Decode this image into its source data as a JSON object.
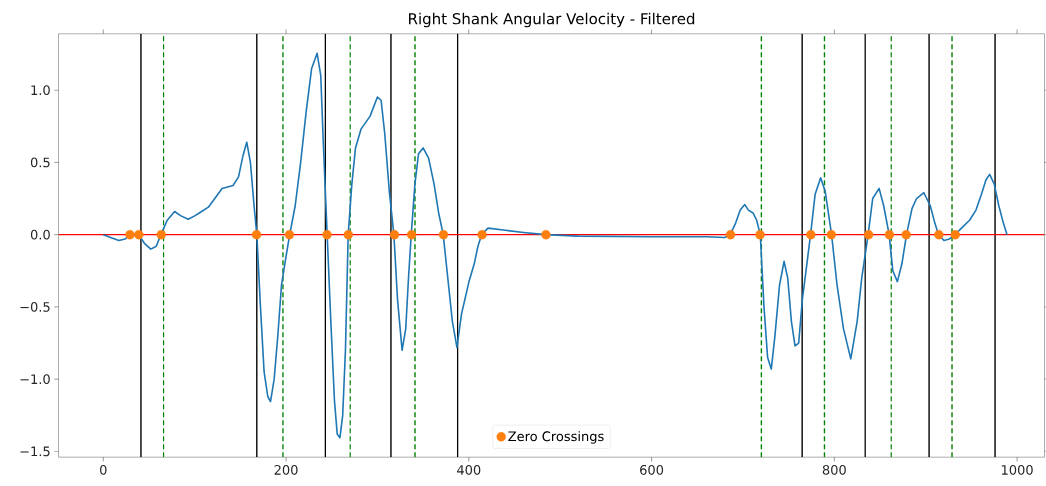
{
  "chart_data": {
    "type": "line",
    "title": "Right Shank Angular Velocity - Filtered",
    "xlim": [
      -49,
      1030
    ],
    "ylim": [
      -1.54,
      1.39
    ],
    "xticks": [
      0,
      200,
      400,
      600,
      800,
      1000
    ],
    "yticks": [
      {
        "value": -1.5,
        "label": "−1.5"
      },
      {
        "value": -1.0,
        "label": "−1.0"
      },
      {
        "value": -0.5,
        "label": "−0.5"
      },
      {
        "value": 0.0,
        "label": "0.0"
      },
      {
        "value": 0.5,
        "label": "0.5"
      },
      {
        "value": 1.0,
        "label": "1.0"
      }
    ],
    "grid": false,
    "legend": "bottom",
    "series": [
      {
        "color": "#1f77b4",
        "marker": "none",
        "line_style": "solid",
        "x": [
          0,
          8,
          17,
          24,
          29,
          34,
          39,
          45,
          52,
          58,
          63,
          70,
          78,
          85,
          93,
          100,
          105,
          115,
          122,
          130,
          142,
          148,
          153,
          157,
          161,
          165,
          168,
          172,
          176,
          180,
          183,
          187,
          191,
          195,
          200,
          204,
          210,
          216,
          222,
          228,
          234,
          238,
          241,
          245,
          249,
          253,
          256,
          259,
          262,
          265,
          268,
          272,
          276,
          282,
          292,
          300,
          304,
          308,
          313,
          318,
          322,
          327,
          331,
          334,
          337,
          341,
          345,
          350,
          356,
          362,
          367,
          372,
          377,
          382,
          387,
          392,
          400,
          406,
          410,
          414,
          421,
          440,
          460,
          484,
          520,
          600,
          660,
          680,
          686,
          692,
          697,
          702,
          706,
          711,
          715,
          719,
          723,
          727,
          731,
          735,
          740,
          745,
          749,
          753,
          757,
          761,
          765,
          770,
          774,
          779,
          785,
          790,
          797,
          803,
          810,
          818,
          825,
          830,
          837,
          842,
          849,
          854,
          860,
          864,
          869,
          874,
          879,
          885,
          890,
          898,
          905,
          910,
          914,
          920,
          926,
          932,
          940,
          948,
          955,
          961,
          966,
          970,
          975,
          980,
          985,
          989
        ],
        "values": [
          0,
          -0.02,
          -0.04,
          -0.03,
          0,
          null,
          0,
          -0.06,
          -0.1,
          -0.08,
          0,
          0.1,
          0.16,
          0.13,
          0.107,
          0.13,
          0.15,
          0.19,
          0.25,
          0.32,
          0.34,
          0.4,
          0.55,
          0.64,
          0.5,
          0.2,
          0,
          -0.5,
          -0.95,
          -1.12,
          -1.155,
          -1.0,
          -0.7,
          -0.35,
          -0.15,
          0,
          0.2,
          0.5,
          0.85,
          1.15,
          1.255,
          1.1,
          0.6,
          0,
          -0.6,
          -1.15,
          -1.38,
          -1.405,
          -1.25,
          -0.8,
          0,
          0.35,
          0.6,
          0.73,
          0.82,
          0.952,
          0.93,
          0.7,
          0.3,
          0,
          -0.45,
          -0.8,
          -0.65,
          -0.3,
          0,
          0.35,
          0.56,
          0.6,
          0.53,
          0.35,
          0.15,
          0,
          -0.3,
          -0.6,
          -0.78,
          -0.55,
          -0.33,
          -0.2,
          -0.08,
          0,
          0.045,
          0.03,
          0.015,
          0,
          -0.01,
          -0.015,
          -0.015,
          -0.02,
          0,
          0.08,
          0.17,
          0.208,
          0.17,
          0.15,
          0.1,
          0,
          -0.5,
          -0.85,
          -0.93,
          -0.7,
          -0.35,
          -0.185,
          -0.3,
          -0.6,
          -0.77,
          -0.75,
          -0.45,
          -0.2,
          0,
          0.28,
          0.393,
          0.3,
          0,
          -0.35,
          -0.65,
          -0.86,
          -0.6,
          -0.3,
          0,
          0.25,
          0.32,
          0.2,
          0,
          -0.25,
          -0.325,
          -0.2,
          0,
          0.18,
          0.25,
          0.29,
          0.2,
          0.08,
          0,
          -0.04,
          -0.03,
          0,
          0.05,
          0.1,
          0.17,
          0.28,
          0.38,
          0.417,
          0.35,
          0.2,
          0.08,
          0
        ]
      },
      {
        "type": "scatter",
        "name": "Zero Crossings",
        "color": "#ff7f0e",
        "marker": "circle",
        "x": [
          29.2,
          38.9,
          63.4,
          167.7,
          203.7,
          244.8,
          268.1,
          318.6,
          337.4,
          372.3,
          414.5,
          484.4,
          686.4,
          718.7,
          774.3,
          796.7,
          837.5,
          860.3,
          878.6,
          914.4,
          932.3
        ],
        "values": [
          0,
          0,
          0,
          0,
          0,
          0,
          0,
          0,
          0,
          0,
          0,
          0,
          0,
          0,
          0,
          0,
          0,
          0,
          0,
          0,
          0
        ]
      }
    ],
    "ref_lines": [
      {
        "axis": "x",
        "value": 41.2,
        "color": "#000000",
        "line_style": "solid"
      },
      {
        "axis": "x",
        "value": 168.0,
        "color": "#000000",
        "line_style": "solid"
      },
      {
        "axis": "x",
        "value": 243.0,
        "color": "#000000",
        "line_style": "solid"
      },
      {
        "axis": "x",
        "value": 314.8,
        "color": "#000000",
        "line_style": "solid"
      },
      {
        "axis": "x",
        "value": 387.8,
        "color": "#000000",
        "line_style": "solid"
      },
      {
        "axis": "x",
        "value": 764.8,
        "color": "#000000",
        "line_style": "solid"
      },
      {
        "axis": "x",
        "value": 833.7,
        "color": "#000000",
        "line_style": "solid"
      },
      {
        "axis": "x",
        "value": 903.7,
        "color": "#000000",
        "line_style": "solid"
      },
      {
        "axis": "x",
        "value": 975.9,
        "color": "#000000",
        "line_style": "solid"
      },
      {
        "axis": "x",
        "value": 66.0,
        "color": "#008000",
        "line_style": "dashed"
      },
      {
        "axis": "x",
        "value": 196.6,
        "color": "#008000",
        "line_style": "dashed"
      },
      {
        "axis": "x",
        "value": 270.1,
        "color": "#008000",
        "line_style": "dashed"
      },
      {
        "axis": "x",
        "value": 341.1,
        "color": "#008000",
        "line_style": "dashed"
      },
      {
        "axis": "x",
        "value": 720.2,
        "color": "#008000",
        "line_style": "dashed"
      },
      {
        "axis": "x",
        "value": 789.2,
        "color": "#008000",
        "line_style": "dashed"
      },
      {
        "axis": "x",
        "value": 862.2,
        "color": "#008000",
        "line_style": "dashed"
      },
      {
        "axis": "x",
        "value": 928.8,
        "color": "#008000",
        "line_style": "dashed"
      },
      {
        "axis": "y",
        "value": 0,
        "color": "#ff0000",
        "line_style": "solid"
      }
    ]
  }
}
